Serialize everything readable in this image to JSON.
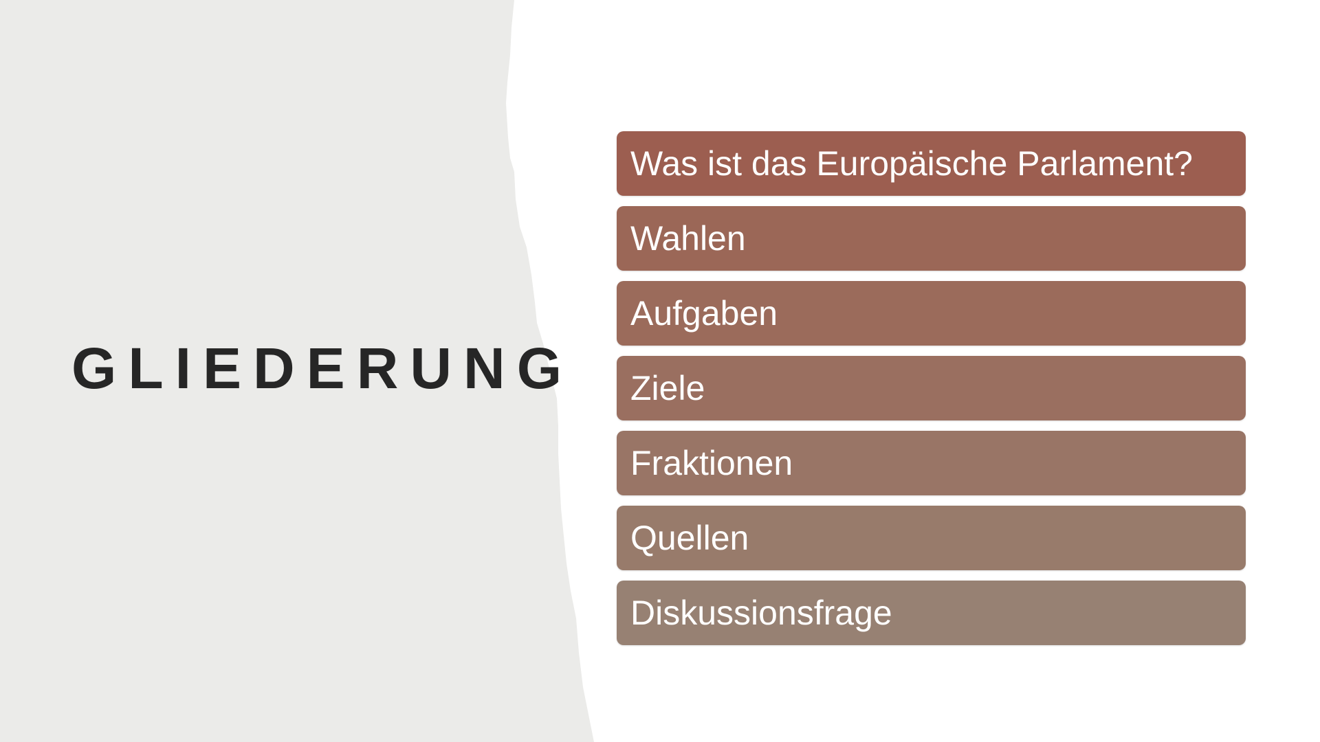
{
  "slide": {
    "title": "GLIEDERUNG",
    "background_color": "#ebebe9",
    "items": [
      {
        "label": "Was ist das Europäische Parlament?",
        "color": "#9c5e50"
      },
      {
        "label": "Wahlen",
        "color": "#9b6757"
      },
      {
        "label": "Aufgaben",
        "color": "#9b6b5b"
      },
      {
        "label": "Ziele",
        "color": "#9a6f60"
      },
      {
        "label": "Fraktionen",
        "color": "#997566"
      },
      {
        "label": "Quellen",
        "color": "#987b6b"
      },
      {
        "label": "Diskussionsfrage",
        "color": "#978173"
      }
    ]
  }
}
